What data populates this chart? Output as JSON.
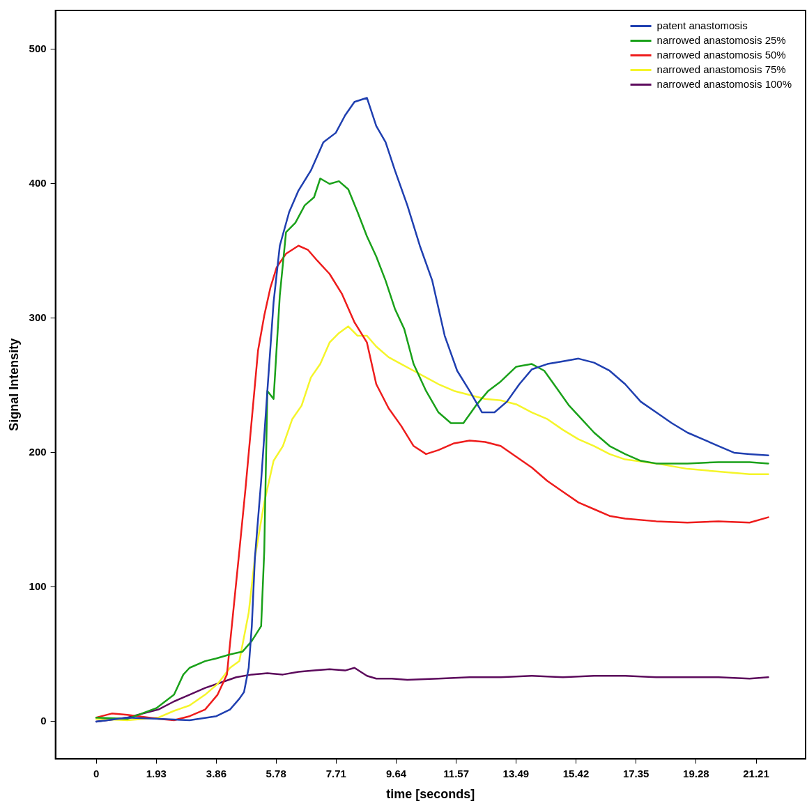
{
  "chart_data": {
    "type": "line",
    "xlabel": "time [seconds]",
    "ylabel": "Signal Intensity",
    "xlim": [
      -1.31,
      22.8
    ],
    "ylim": [
      -27.7,
      529
    ],
    "xticks": [
      0,
      1.93,
      3.86,
      5.78,
      7.71,
      9.64,
      11.57,
      13.49,
      15.42,
      17.35,
      19.28,
      21.21
    ],
    "yticks": [
      0,
      100,
      200,
      300,
      400,
      500
    ],
    "grid": false,
    "legend": "top right",
    "marker": "none",
    "line_style": "solid",
    "series": [
      {
        "name": "patent anastomosis",
        "color": "#1f3fb0",
        "x": [
          0,
          1,
          2,
          3,
          3.86,
          4.3,
          4.6,
          4.75,
          4.9,
          5.0,
          5.1,
          5.3,
          5.5,
          5.7,
          5.9,
          6.2,
          6.5,
          6.9,
          7.3,
          7.7,
          8.0,
          8.3,
          8.7,
          9.0,
          9.3,
          9.6,
          10.0,
          10.4,
          10.8,
          11.2,
          11.6,
          12.0,
          12.4,
          12.8,
          13.2,
          13.6,
          14.0,
          14.5,
          15.0,
          15.5,
          16.0,
          16.5,
          17.0,
          17.5,
          18.0,
          18.5,
          19.0,
          19.5,
          20.0,
          20.5,
          21.0,
          21.6
        ],
        "values": [
          0,
          3,
          2,
          1,
          4,
          9,
          17,
          22,
          40,
          71,
          122,
          179,
          246,
          312,
          354,
          379,
          395,
          410,
          431,
          438,
          451,
          461,
          464,
          443,
          431,
          410,
          384,
          354,
          328,
          287,
          261,
          246,
          230,
          230,
          238,
          251,
          262,
          266,
          268,
          270,
          267,
          261,
          251,
          238,
          230,
          222,
          215,
          210,
          205,
          200,
          199,
          198
        ]
      },
      {
        "name": "narrowed anastomosis 25%",
        "color": "#1aa11a",
        "x": [
          0,
          1,
          1.93,
          2.5,
          2.8,
          3.0,
          3.5,
          3.86,
          4.3,
          4.7,
          5.0,
          5.3,
          5.4,
          5.5,
          5.7,
          5.9,
          6.1,
          6.4,
          6.7,
          7.0,
          7.2,
          7.5,
          7.8,
          8.1,
          8.4,
          8.7,
          9.0,
          9.3,
          9.6,
          9.9,
          10.2,
          10.6,
          11.0,
          11.4,
          11.8,
          12.2,
          12.6,
          13.0,
          13.5,
          14.0,
          14.4,
          14.8,
          15.2,
          15.6,
          16.0,
          16.5,
          17.0,
          17.5,
          18.0,
          19.0,
          20.0,
          21.0,
          21.6
        ],
        "values": [
          3,
          2,
          10,
          20,
          35,
          40,
          45,
          47,
          50,
          52,
          60,
          71,
          127,
          246,
          240,
          317,
          364,
          371,
          384,
          390,
          404,
          400,
          402,
          396,
          379,
          361,
          346,
          328,
          307,
          292,
          266,
          246,
          230,
          222,
          222,
          235,
          246,
          253,
          264,
          266,
          261,
          248,
          235,
          225,
          215,
          205,
          199,
          194,
          192,
          192,
          193,
          193,
          192
        ]
      },
      {
        "name": "narrowed anastomosis 50%",
        "color": "#ee1c1c",
        "x": [
          0,
          0.5,
          1,
          2,
          2.5,
          3,
          3.5,
          3.9,
          4.2,
          4.4,
          4.6,
          4.8,
          5.0,
          5.2,
          5.4,
          5.6,
          5.8,
          6.1,
          6.5,
          6.8,
          7.1,
          7.5,
          7.9,
          8.3,
          8.7,
          9.0,
          9.4,
          9.8,
          10.2,
          10.6,
          11.0,
          11.5,
          12.0,
          12.5,
          13.0,
          13.5,
          14.0,
          14.5,
          15.0,
          15.5,
          16.0,
          16.5,
          17.0,
          18.0,
          19.0,
          20.0,
          21.0,
          21.6
        ],
        "values": [
          3,
          6,
          5,
          2,
          1,
          4,
          9,
          20,
          35,
          81,
          127,
          174,
          225,
          276,
          302,
          323,
          338,
          348,
          354,
          351,
          343,
          333,
          318,
          297,
          282,
          251,
          233,
          220,
          205,
          199,
          202,
          207,
          209,
          208,
          205,
          197,
          189,
          179,
          171,
          163,
          158,
          153,
          151,
          149,
          148,
          149,
          148,
          152
        ]
      },
      {
        "name": "narrowed anastomosis 75%",
        "color": "#f5f52a",
        "x": [
          0,
          1,
          2,
          2.5,
          3,
          3.5,
          3.9,
          4.3,
          4.6,
          4.9,
          5.1,
          5.4,
          5.7,
          6.0,
          6.3,
          6.6,
          6.9,
          7.2,
          7.5,
          7.8,
          8.1,
          8.4,
          8.7,
          9.0,
          9.4,
          9.8,
          10.2,
          10.6,
          11.0,
          11.5,
          12.0,
          12.5,
          13.0,
          13.5,
          14.0,
          14.5,
          15.0,
          15.5,
          16.0,
          16.5,
          17.0,
          18.0,
          19.0,
          20.0,
          21.0,
          21.6
        ],
        "values": [
          2,
          1,
          3,
          8,
          12,
          20,
          28,
          40,
          45,
          81,
          122,
          163,
          194,
          205,
          225,
          235,
          256,
          266,
          282,
          289,
          294,
          287,
          287,
          279,
          271,
          266,
          261,
          256,
          251,
          246,
          243,
          240,
          239,
          236,
          230,
          225,
          217,
          210,
          205,
          199,
          195,
          192,
          188,
          186,
          184,
          184
        ]
      },
      {
        "name": "narrowed anastomosis 100%",
        "color": "#5c0a5c",
        "x": [
          0,
          1,
          2,
          2.5,
          3,
          3.5,
          4,
          4.5,
          5,
          5.5,
          6,
          6.5,
          7,
          7.5,
          8,
          8.3,
          8.7,
          9,
          9.5,
          10,
          11,
          12,
          13,
          14,
          15,
          16,
          17,
          18,
          19,
          20,
          21,
          21.6
        ],
        "values": [
          0,
          3,
          9,
          15,
          20,
          25,
          29,
          33,
          35,
          36,
          35,
          37,
          38,
          39,
          38,
          40,
          34,
          32,
          32,
          31,
          32,
          33,
          33,
          34,
          33,
          34,
          34,
          33,
          33,
          33,
          32,
          33
        ]
      }
    ]
  }
}
